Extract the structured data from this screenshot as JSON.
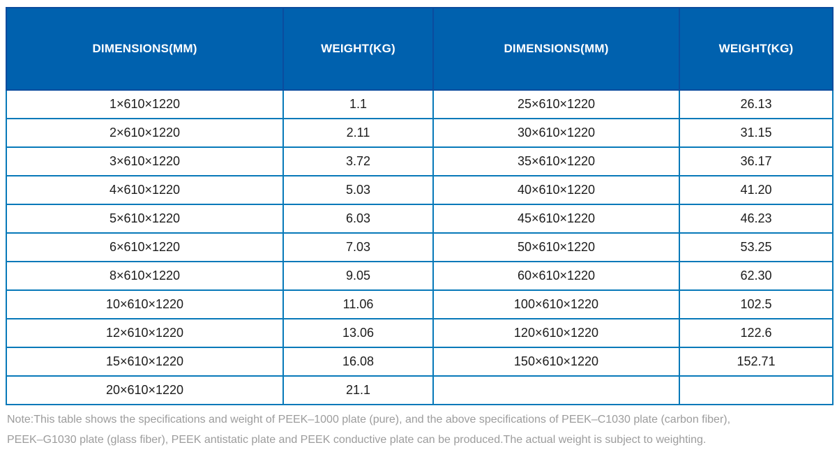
{
  "colors": {
    "header_background": "#0061ae",
    "header_divider": "#0b4c9e",
    "grid_border": "#0779b9",
    "header_text": "#ffffff",
    "cell_text": "#1c1c1c",
    "note_text": "#9c9c9c"
  },
  "chart_data": {
    "type": "table",
    "columns": [
      "DIMENSIONS(MM)",
      "WEIGHT(KG)",
      "DIMENSIONS(MM)",
      "WEIGHT(KG)"
    ],
    "rows": [
      [
        "1×610×1220",
        "1.1",
        "25×610×1220",
        "26.13"
      ],
      [
        "2×610×1220",
        "2.11",
        "30×610×1220",
        "31.15"
      ],
      [
        "3×610×1220",
        "3.72",
        "35×610×1220",
        "36.17"
      ],
      [
        "4×610×1220",
        "5.03",
        "40×610×1220",
        "41.20"
      ],
      [
        "5×610×1220",
        "6.03",
        "45×610×1220",
        "46.23"
      ],
      [
        "6×610×1220",
        "7.03",
        "50×610×1220",
        "53.25"
      ],
      [
        "8×610×1220",
        "9.05",
        "60×610×1220",
        "62.30"
      ],
      [
        "10×610×1220",
        "11.06",
        "100×610×1220",
        "102.5"
      ],
      [
        "12×610×1220",
        "13.06",
        "120×610×1220",
        "122.6"
      ],
      [
        "15×610×1220",
        "16.08",
        "150×610×1220",
        "152.71"
      ],
      [
        "20×610×1220",
        "21.1",
        "",
        ""
      ]
    ]
  },
  "note": {
    "lines": [
      "Note:This table shows the specifications and weight of PEEK–1000 plate (pure), and the above specifications of PEEK–C1030 plate (carbon fiber),",
      "PEEK–G1030 plate (glass fiber), PEEK antistatic plate and PEEK conductive plate can be produced.The actual weight is subject to weighting."
    ]
  }
}
